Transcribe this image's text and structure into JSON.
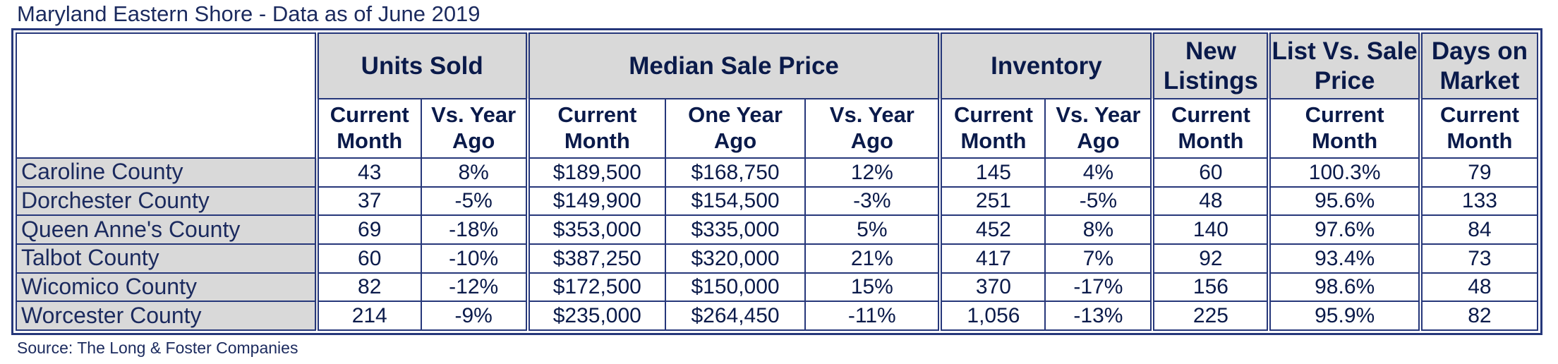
{
  "title": "Maryland Eastern Shore - Data as of June 2019",
  "source": "Source: The Long & Foster Companies",
  "groups": {
    "units_sold": "Units Sold",
    "median_sale_price": "Median Sale Price",
    "inventory": "Inventory",
    "new_listings": "New Listings",
    "list_vs_sale": "List Vs. Sale Price",
    "days_on_market": "Days on Market"
  },
  "subheaders": {
    "current_month": "Current Month",
    "vs_year_ago": "Vs. Year Ago",
    "one_year_ago": "One Year Ago"
  },
  "rows": [
    {
      "county": "Caroline County",
      "units": "43",
      "units_vs": "8%",
      "price_cur": "$189,500",
      "price_prev": "$168,750",
      "price_vs": "12%",
      "inv": "145",
      "inv_vs": "4%",
      "new": "60",
      "list_sale": "100.3%",
      "dom": "79"
    },
    {
      "county": "Dorchester County",
      "units": "37",
      "units_vs": "-5%",
      "price_cur": "$149,900",
      "price_prev": "$154,500",
      "price_vs": "-3%",
      "inv": "251",
      "inv_vs": "-5%",
      "new": "48",
      "list_sale": "95.6%",
      "dom": "133"
    },
    {
      "county": "Queen Anne's County",
      "units": "69",
      "units_vs": "-18%",
      "price_cur": "$353,000",
      "price_prev": "$335,000",
      "price_vs": "5%",
      "inv": "452",
      "inv_vs": "8%",
      "new": "140",
      "list_sale": "97.6%",
      "dom": "84"
    },
    {
      "county": "Talbot County",
      "units": "60",
      "units_vs": "-10%",
      "price_cur": "$387,250",
      "price_prev": "$320,000",
      "price_vs": "21%",
      "inv": "417",
      "inv_vs": "7%",
      "new": "92",
      "list_sale": "93.4%",
      "dom": "73"
    },
    {
      "county": "Wicomico County",
      "units": "82",
      "units_vs": "-12%",
      "price_cur": "$172,500",
      "price_prev": "$150,000",
      "price_vs": "15%",
      "inv": "370",
      "inv_vs": "-17%",
      "new": "156",
      "list_sale": "98.6%",
      "dom": "48"
    },
    {
      "county": "Worcester County",
      "units": "214",
      "units_vs": "-9%",
      "price_cur": "$235,000",
      "price_prev": "$264,450",
      "price_vs": "-11%",
      "inv": "1,056",
      "inv_vs": "-13%",
      "new": "225",
      "list_sale": "95.9%",
      "dom": "82"
    }
  ],
  "colors": {
    "border": "#26377a",
    "header_fill": "#d9d9d9",
    "text": "#0a1a4a"
  }
}
